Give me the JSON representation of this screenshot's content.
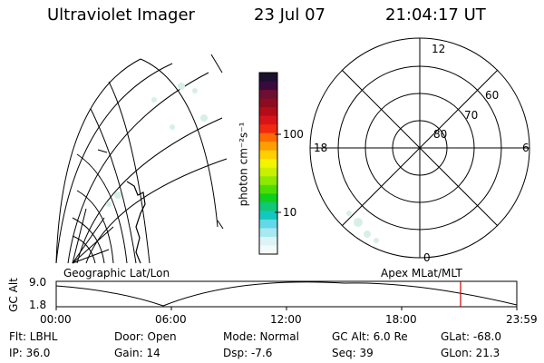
{
  "header": {
    "instrument": "Ultraviolet Imager",
    "date": "23 Jul 07",
    "time": "21:04:17 UT"
  },
  "colorbar": {
    "units": "photon cm⁻²s⁻¹",
    "ticks": [
      "100",
      "10"
    ],
    "colors": [
      "#1a0f2e",
      "#3a0a3c",
      "#6d0f33",
      "#8c0d1f",
      "#b20c18",
      "#d8141a",
      "#f02a10",
      "#ff6a00",
      "#ff9e00",
      "#ffd000",
      "#f3f500",
      "#c8f000",
      "#8ee800",
      "#4ddc00",
      "#10cf1c",
      "#10c878",
      "#14c8c0",
      "#62d8e8",
      "#a8e8f0",
      "#dcf4f6",
      "#f2fafa"
    ]
  },
  "geo_map": {
    "label": "Geographic Lat/Lon"
  },
  "polar_plot": {
    "label": "Apex MLat/MLT",
    "mlt_top": "12",
    "mlt_left": "18",
    "mlt_right": "6",
    "mlt_bottom": "0",
    "lat_rings": [
      "80",
      "70",
      "60"
    ]
  },
  "altitude_plot": {
    "ylabel": "GC Alt",
    "ytick_top": "9.0",
    "ytick_bottom": "1.8",
    "xticks": [
      "00:00",
      "06:00",
      "12:00",
      "18:00",
      "23:59"
    ],
    "current_time_marker_hours": 21.07,
    "line_color": "#000000",
    "marker_color": "#cc0000"
  },
  "info": {
    "flt": "Flt: LBHL",
    "ip": "IP: 36.0",
    "door": "Door: Open",
    "gain": "Gain: 14",
    "mode": "Mode: Normal",
    "dsp": "Dsp:    -7.6",
    "gc_alt": "GC Alt: 6.0 Re",
    "seq": "Seq: 39",
    "glat": "GLat:  -68.0",
    "glon": "GLon:  21.3"
  }
}
